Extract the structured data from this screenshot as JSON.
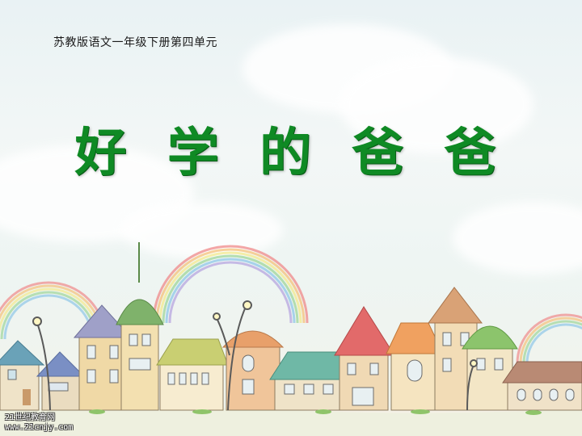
{
  "slide": {
    "subtitle": "苏教版语文一年级下册第四单元",
    "title": "好 学 的 爸 爸"
  },
  "watermark": {
    "line1": "21世纪教育网",
    "line2": "www.21cnjy.com"
  },
  "colors": {
    "title": "#0f8a24",
    "sky": "#eef5f3"
  },
  "illustration": {
    "description_icons": [
      "rainbow-icon",
      "house-icon",
      "street-lamp-icon",
      "cloud-icon"
    ]
  }
}
